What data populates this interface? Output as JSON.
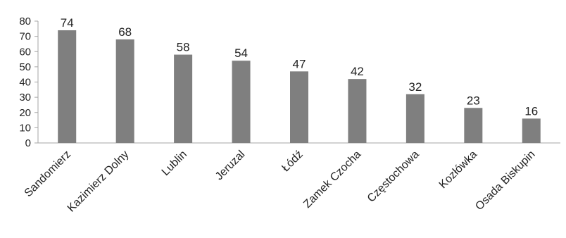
{
  "chart_data": {
    "type": "bar",
    "categories": [
      "Sandomierz",
      "Kazimierz Dolny",
      "Lublin",
      "Jeruzal",
      "Łódź",
      "Zamek Czocha",
      "Częstochowa",
      "Kozłówka",
      "Osada Biskupin"
    ],
    "values": [
      74,
      68,
      58,
      54,
      47,
      42,
      32,
      23,
      16
    ],
    "ylim": [
      0,
      80
    ],
    "yticks": [
      0,
      10,
      20,
      30,
      40,
      50,
      60,
      70,
      80
    ],
    "data_labels": true,
    "grid": false,
    "legend": "none",
    "bar_color": "#7f7f7f",
    "axis_color": "#a6a6a6"
  }
}
